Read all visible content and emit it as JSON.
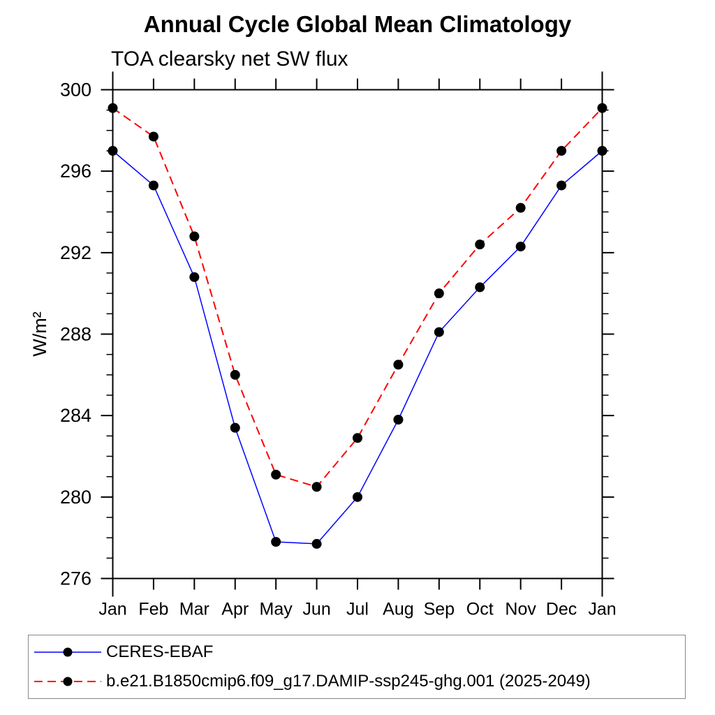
{
  "title": "Annual Cycle Global Mean Climatology",
  "subtitle": "TOA clearsky net SW flux",
  "ylabel": "W/m²",
  "colors": {
    "axis": "#000000",
    "background": "#ffffff",
    "legend_border": "#888888",
    "obs_line": "#0000ff",
    "model_line": "#ff0000",
    "marker": "#000000"
  },
  "chart_data": {
    "type": "line",
    "title": "Annual Cycle Global Mean Climatology",
    "subtitle": "TOA clearsky net SW flux",
    "xlabel": "",
    "ylabel": "W/m²",
    "categories": [
      "Jan",
      "Feb",
      "Mar",
      "Apr",
      "May",
      "Jun",
      "Jul",
      "Aug",
      "Sep",
      "Oct",
      "Nov",
      "Dec",
      "Jan"
    ],
    "series": [
      {
        "name": "CERES-EBAF",
        "line_color": "#0000ff",
        "line_style": "solid",
        "line_width": 1.5,
        "marker": "circle",
        "marker_color": "#000000",
        "values": [
          297.0,
          295.3,
          290.8,
          283.4,
          277.8,
          277.7,
          280.0,
          283.8,
          288.1,
          290.3,
          292.3,
          295.3,
          297.0
        ]
      },
      {
        "name": "b.e21.B1850cmip6.f09_g17.DAMIP-ssp245-ghg.001 (2025-2049)",
        "line_color": "#ff0000",
        "line_style": "dashed",
        "line_width": 2,
        "marker": "circle",
        "marker_color": "#000000",
        "values": [
          299.1,
          297.7,
          292.8,
          286.0,
          281.1,
          280.5,
          282.9,
          286.5,
          290.0,
          292.4,
          294.2,
          297.0,
          299.1
        ]
      }
    ],
    "ylim": [
      276,
      300
    ],
    "y_major_ticks": [
      276,
      280,
      284,
      288,
      292,
      296,
      300
    ],
    "y_minor_step": 1,
    "grid": false,
    "legend_position": "bottom"
  }
}
